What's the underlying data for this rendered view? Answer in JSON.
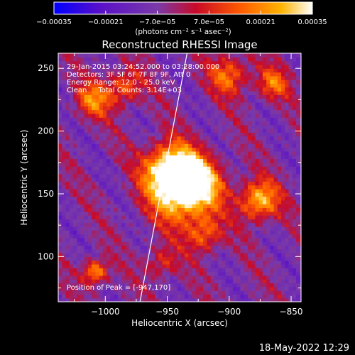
{
  "chart_data": {
    "type": "heatmap",
    "title": "Reconstructed RHESSI Image",
    "xlabel": "Heliocentric X (arcsec)",
    "ylabel": "Heliocentric Y (arcsec)",
    "xlim": [
      -1038,
      -842
    ],
    "ylim": [
      64,
      262
    ],
    "x_ticks": [
      -1000,
      -950,
      -900,
      -850
    ],
    "x_tick_labels": [
      "−1000",
      "−950",
      "−900",
      "−850"
    ],
    "y_ticks": [
      100,
      150,
      200,
      250
    ],
    "y_tick_labels": [
      "100",
      "150",
      "200",
      "250"
    ],
    "colorbar": {
      "ticks": [
        -0.00035,
        -0.00021,
        -7e-05,
        7e-05,
        0.00021,
        0.00035
      ],
      "tick_labels": [
        "−0.00035",
        "−0.00021",
        "−7.0e−05",
        "7.0e−05",
        "0.00021",
        "0.00035"
      ],
      "unit_label": "(photons cm⁻² s⁻¹ asec⁻²)",
      "colors": [
        "#0000ff",
        "#5a10c8",
        "#7a3aa8",
        "#c80a28",
        "#ff5a00",
        "#ffb400",
        "#ffffff"
      ]
    },
    "annotations": [
      "29-Jan-2015 03:24:52.000 to 03:28:00.000",
      "Detectors: 3F 5F 6F 7F 8F 9F, Att 0",
      "Energy Range: 12.0 - 25.0 keV",
      "Clean     Total Counts: 3.14E+03"
    ],
    "peak_label": "Position of Peak = [-947,170]",
    "peak": [
      -947,
      170
    ],
    "limb_line": [
      [
        -972,
        64
      ],
      [
        -934,
        262
      ]
    ],
    "sources": [
      {
        "x": -947,
        "y": 170,
        "intensity": 1.0,
        "sigma": 14
      },
      {
        "x": -940,
        "y": 152,
        "intensity": 0.85,
        "sigma": 18
      },
      {
        "x": -925,
        "y": 158,
        "intensity": 0.7,
        "sigma": 14
      },
      {
        "x": -876,
        "y": 145,
        "intensity": 0.85,
        "sigma": 11
      },
      {
        "x": -1010,
        "y": 225,
        "intensity": 0.6,
        "sigma": 10
      },
      {
        "x": -985,
        "y": 235,
        "intensity": 0.55,
        "sigma": 10
      },
      {
        "x": -900,
        "y": 245,
        "intensity": 0.6,
        "sigma": 11
      },
      {
        "x": -865,
        "y": 238,
        "intensity": 0.55,
        "sigma": 9
      },
      {
        "x": -1008,
        "y": 88,
        "intensity": 0.75,
        "sigma": 7
      },
      {
        "x": -920,
        "y": 118,
        "intensity": 0.55,
        "sigma": 10
      },
      {
        "x": -955,
        "y": 95,
        "intensity": 0.4,
        "sigma": 9
      }
    ]
  },
  "footer": {
    "timestamp": "18-May-2022 12:29"
  }
}
